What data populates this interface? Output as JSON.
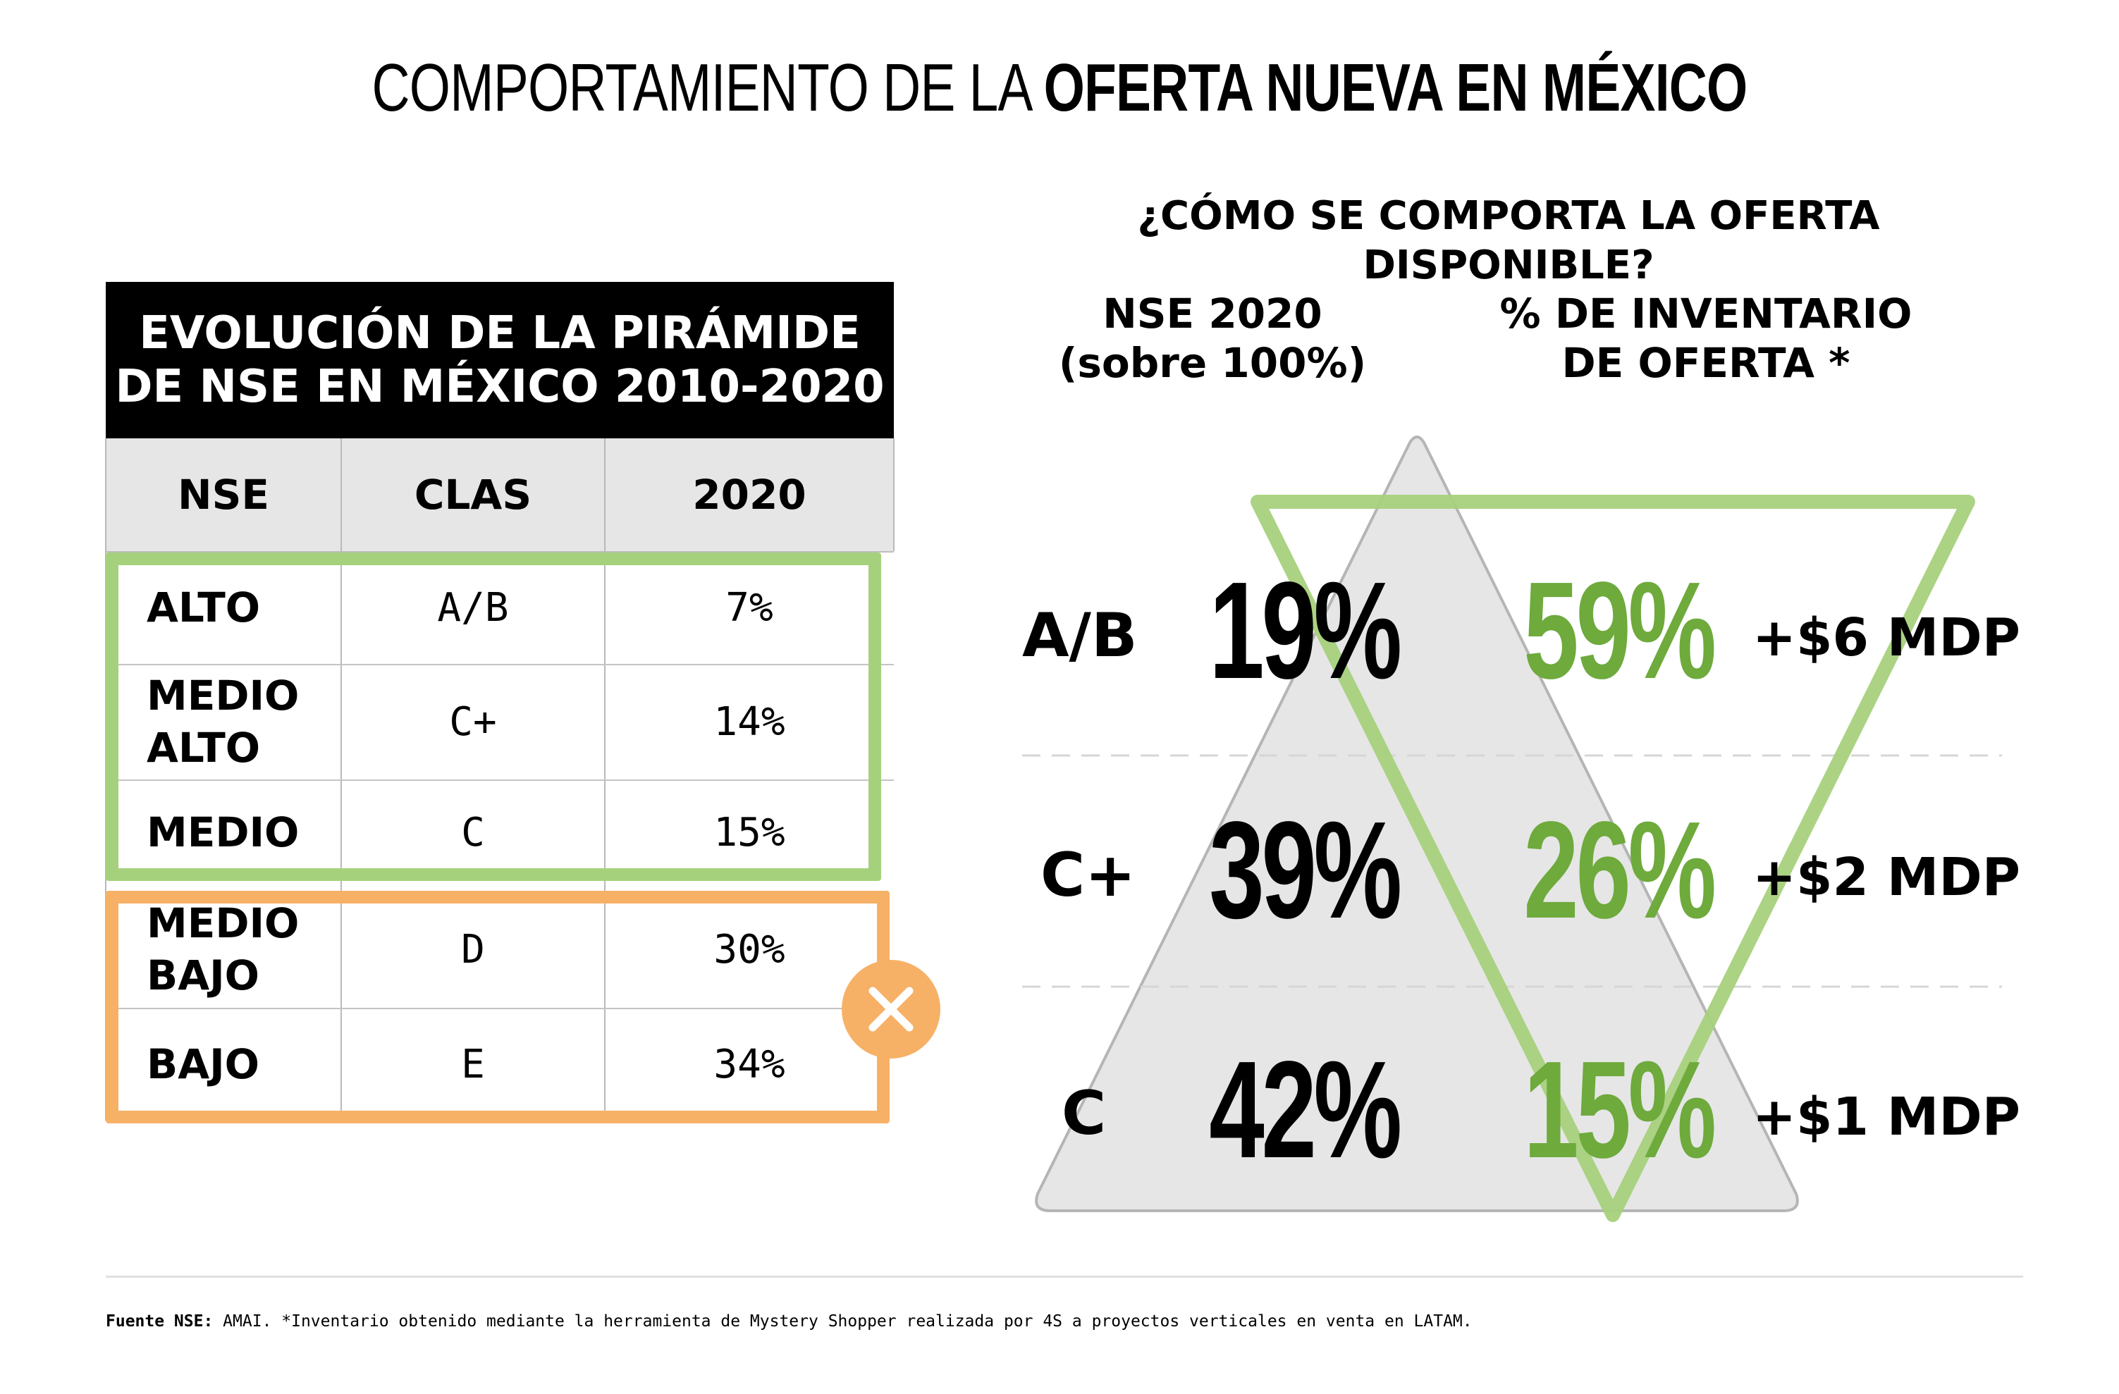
{
  "title": {
    "light": "COMPORTAMIENTO DE LA ",
    "bold": "OFERTA NUEVA EN MÉXICO"
  },
  "table": {
    "heading_line1": "EVOLUCIÓN DE LA PIRÁMIDE",
    "heading_line2": "DE NSE EN MÉXICO 2010-2020",
    "columns": [
      "NSE",
      "CLAS",
      "2020"
    ],
    "rows": [
      {
        "nse_line1": "ALTO",
        "nse_line2": "",
        "clas": "A/B",
        "value": "7%"
      },
      {
        "nse_line1": "MEDIO",
        "nse_line2": "ALTO",
        "clas": "C+",
        "value": "14%"
      },
      {
        "nse_line1": "MEDIO",
        "nse_line2": "",
        "clas": "C",
        "value": "15%"
      },
      {
        "nse_line1": "MEDIO",
        "nse_line2": "BAJO",
        "clas": "D",
        "value": "30%"
      },
      {
        "nse_line1": "BAJO",
        "nse_line2": "",
        "clas": "E",
        "value": "34%"
      }
    ]
  },
  "right": {
    "subtitle": "¿CÓMO SE COMPORTA LA OFERTA DISPONIBLE?",
    "col1_line1": "NSE 2020",
    "col1_line2": "(sobre 100%)",
    "col2_line1": "% DE INVENTARIO",
    "col2_line2": "DE OFERTA *"
  },
  "chart_data": {
    "type": "table",
    "categories": [
      "A/B",
      "C+",
      "C"
    ],
    "series": [
      {
        "name": "NSE 2020 (sobre 100%)",
        "values": [
          19,
          39,
          42
        ],
        "labels": [
          "19%",
          "39%",
          "42%"
        ]
      },
      {
        "name": "% DE INVENTARIO DE OFERTA *",
        "values": [
          59,
          26,
          15
        ],
        "labels": [
          "59%",
          "26%",
          "15%"
        ]
      }
    ],
    "price_labels": [
      "+$6 MDP",
      "+$2 MDP",
      "+$1 MDP"
    ]
  },
  "colors": {
    "green": "#6eaa3c",
    "green_light": "#a6d17c",
    "orange": "#f6b167",
    "pyramid_fill": "#e6e6e6",
    "pyramid_stroke": "#b5b5b5"
  },
  "icons": {
    "reject": "x-circle-icon"
  },
  "footnote": {
    "label": "Fuente NSE:",
    "text": " AMAI. *Inventario obtenido mediante la herramienta de Mystery Shopper realizada por 4S a proyectos verticales en venta en LATAM."
  }
}
